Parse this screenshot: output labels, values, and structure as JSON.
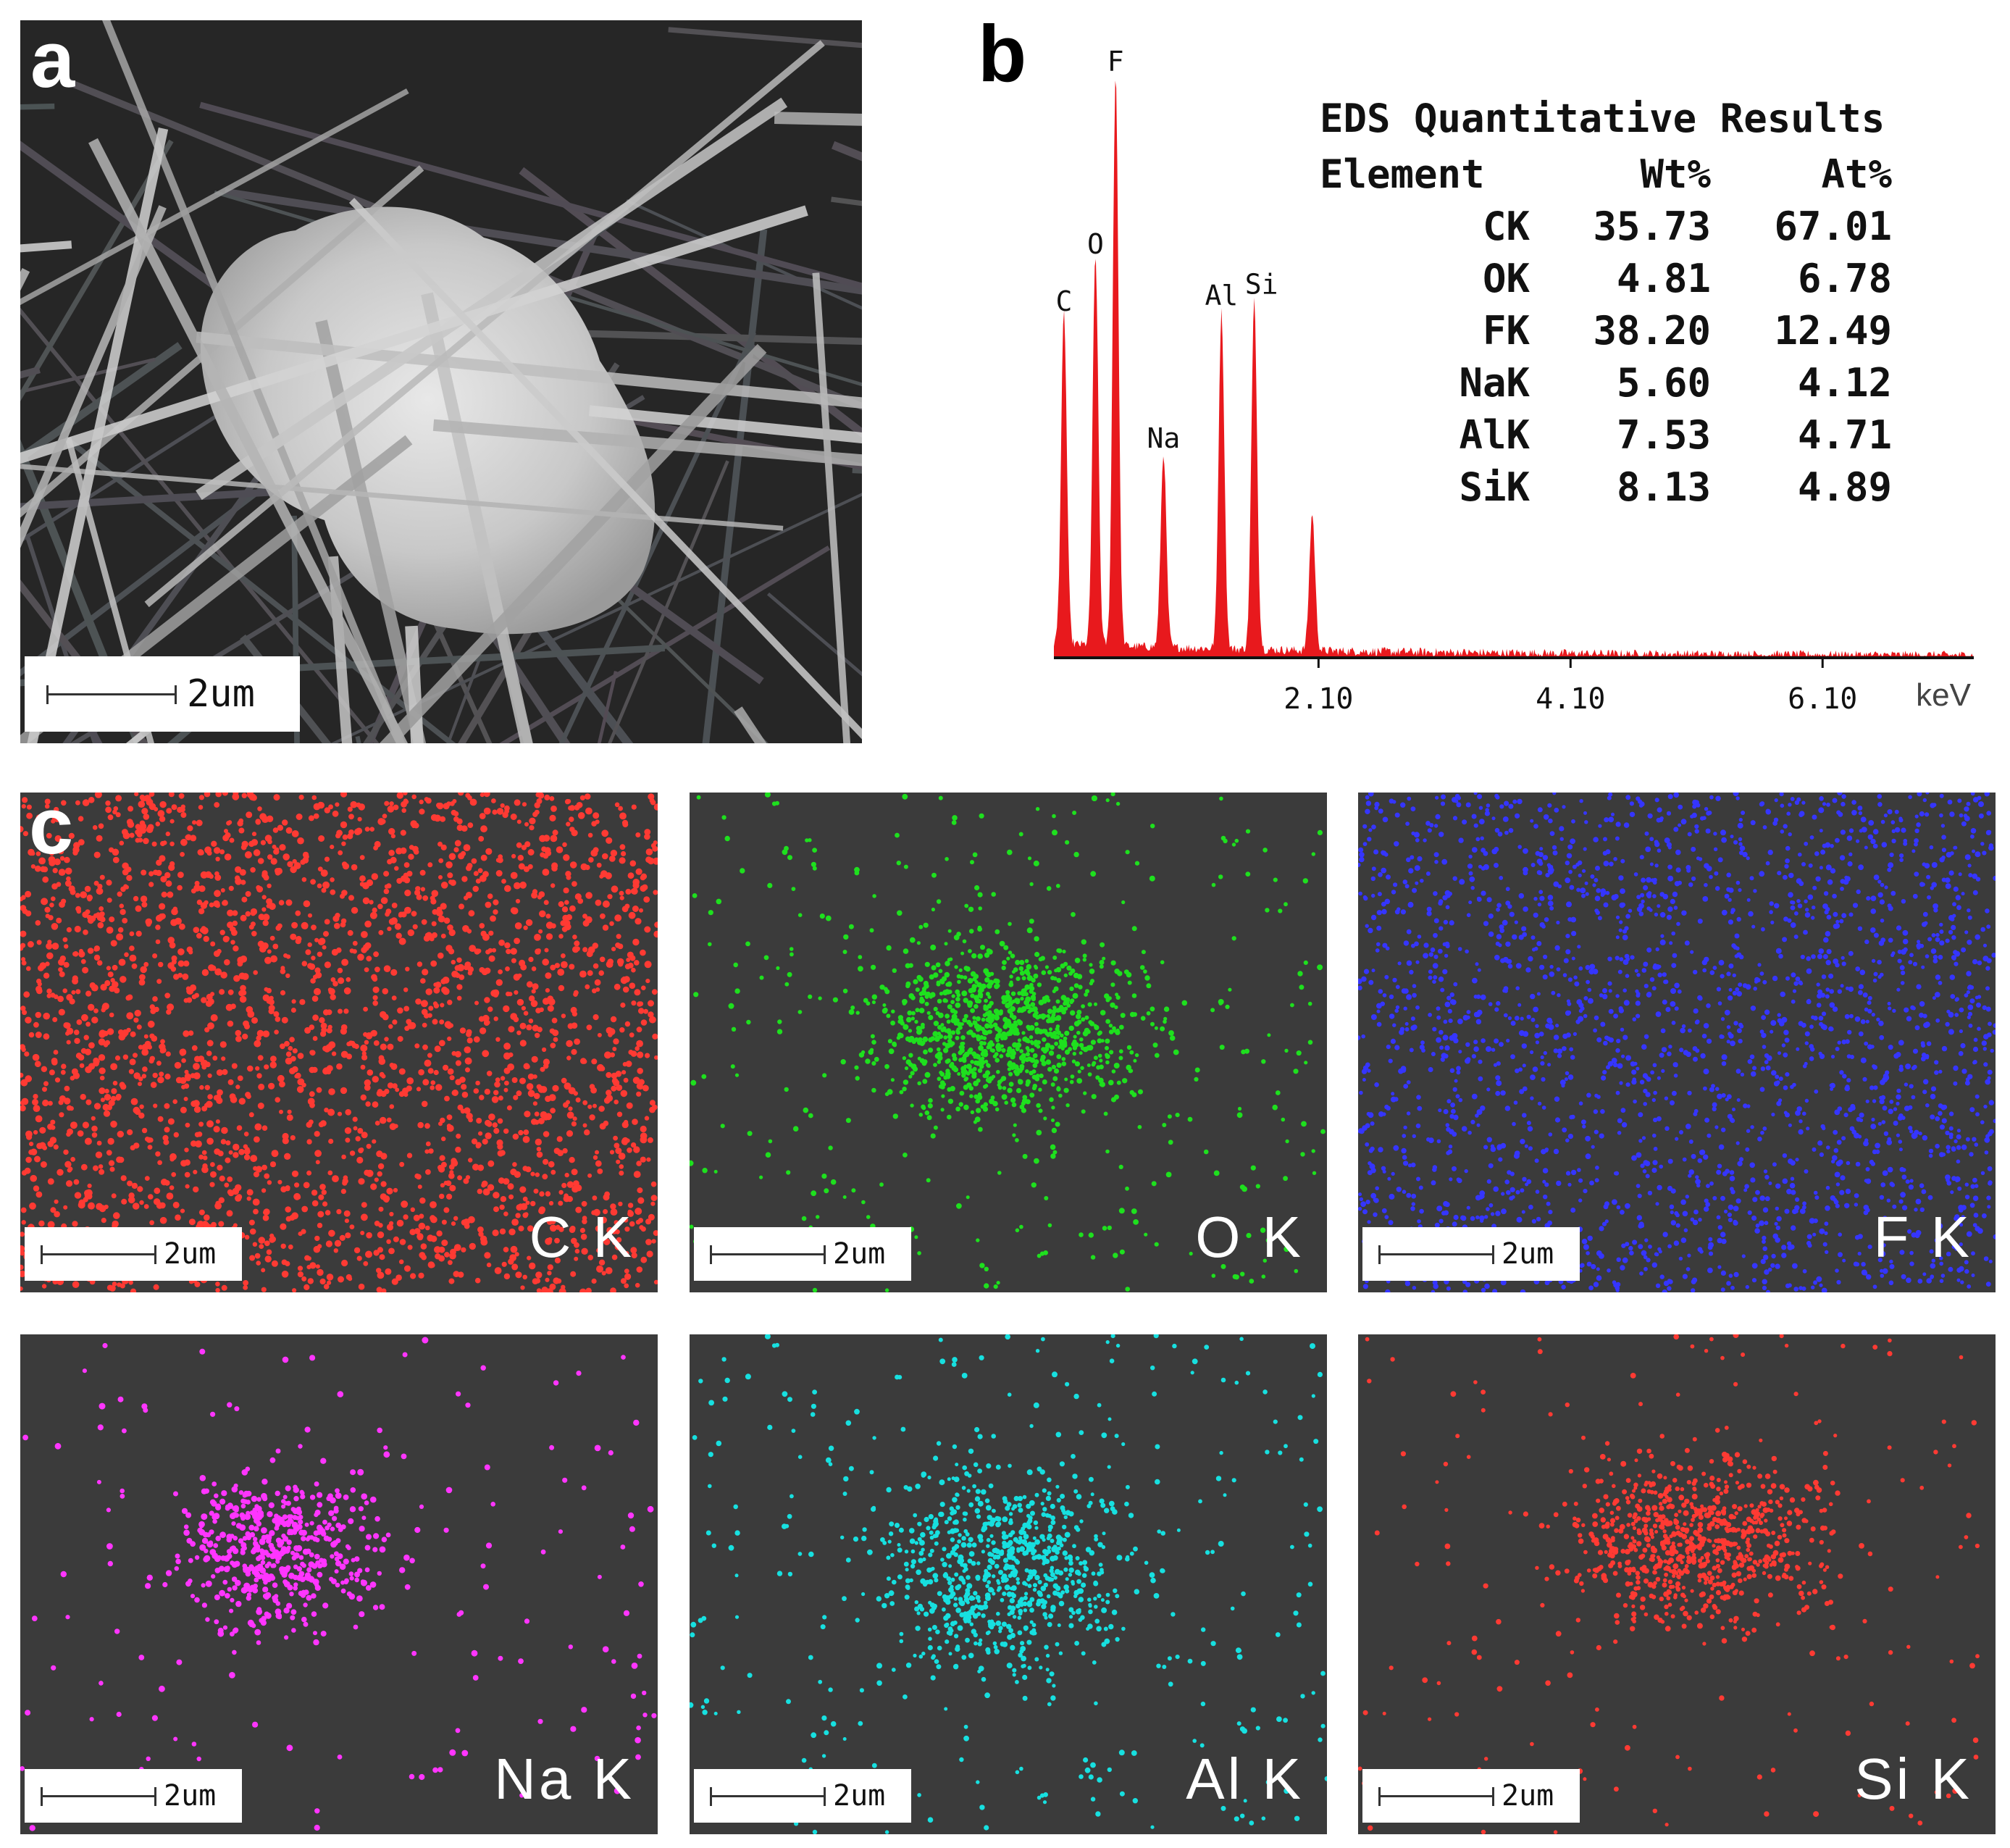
{
  "panels": {
    "a": {
      "letter": "a",
      "scale_label": "2um"
    },
    "b": {
      "letter": "b"
    },
    "c": {
      "letter": "c"
    }
  },
  "chart_data": {
    "type": "bar",
    "title": "",
    "xlabel": "keV",
    "ylabel": "",
    "xlim": [
      0.0,
      7.3
    ],
    "ylim": [
      0,
      100
    ],
    "x_ticks": [
      "2.10",
      "4.10",
      "6.10"
    ],
    "x_tick_values": [
      2.1,
      4.1,
      6.1
    ],
    "color": "#e8191d",
    "peaks": [
      {
        "label": "C",
        "energy": 0.08,
        "height": 58
      },
      {
        "label": "O",
        "energy": 0.33,
        "height": 68
      },
      {
        "label": "F",
        "energy": 0.49,
        "height": 100
      },
      {
        "label": "Na",
        "energy": 0.87,
        "height": 34
      },
      {
        "label": "Al",
        "energy": 1.33,
        "height": 59
      },
      {
        "label": "Si",
        "energy": 1.59,
        "height": 61
      },
      {
        "label": "",
        "energy": 2.05,
        "height": 24
      }
    ],
    "table": {
      "title": "EDS Quantitative Results",
      "columns": [
        "Element",
        "Wt%",
        "At%"
      ],
      "rows": [
        [
          "CK",
          "35.73",
          "67.01"
        ],
        [
          "OK",
          "4.81",
          "6.78"
        ],
        [
          "FK",
          "38.20",
          "12.49"
        ],
        [
          "NaK",
          "5.60",
          "4.12"
        ],
        [
          "AlK",
          "7.53",
          "4.71"
        ],
        [
          "SiK",
          "8.13",
          "4.89"
        ]
      ]
    }
  },
  "maps": [
    {
      "label": "C K",
      "color": "#ff3a33",
      "scale_label": "2um"
    },
    {
      "label": "O K",
      "color": "#1ee01e",
      "scale_label": "2um"
    },
    {
      "label": "F K",
      "color": "#3535ff",
      "scale_label": "2um"
    },
    {
      "label": "Na K",
      "color": "#ff35ff",
      "scale_label": "2um"
    },
    {
      "label": "Al K",
      "color": "#17e0e0",
      "scale_label": "2um"
    },
    {
      "label": "Si K",
      "color": "#ff3a33",
      "scale_label": "2um"
    }
  ]
}
